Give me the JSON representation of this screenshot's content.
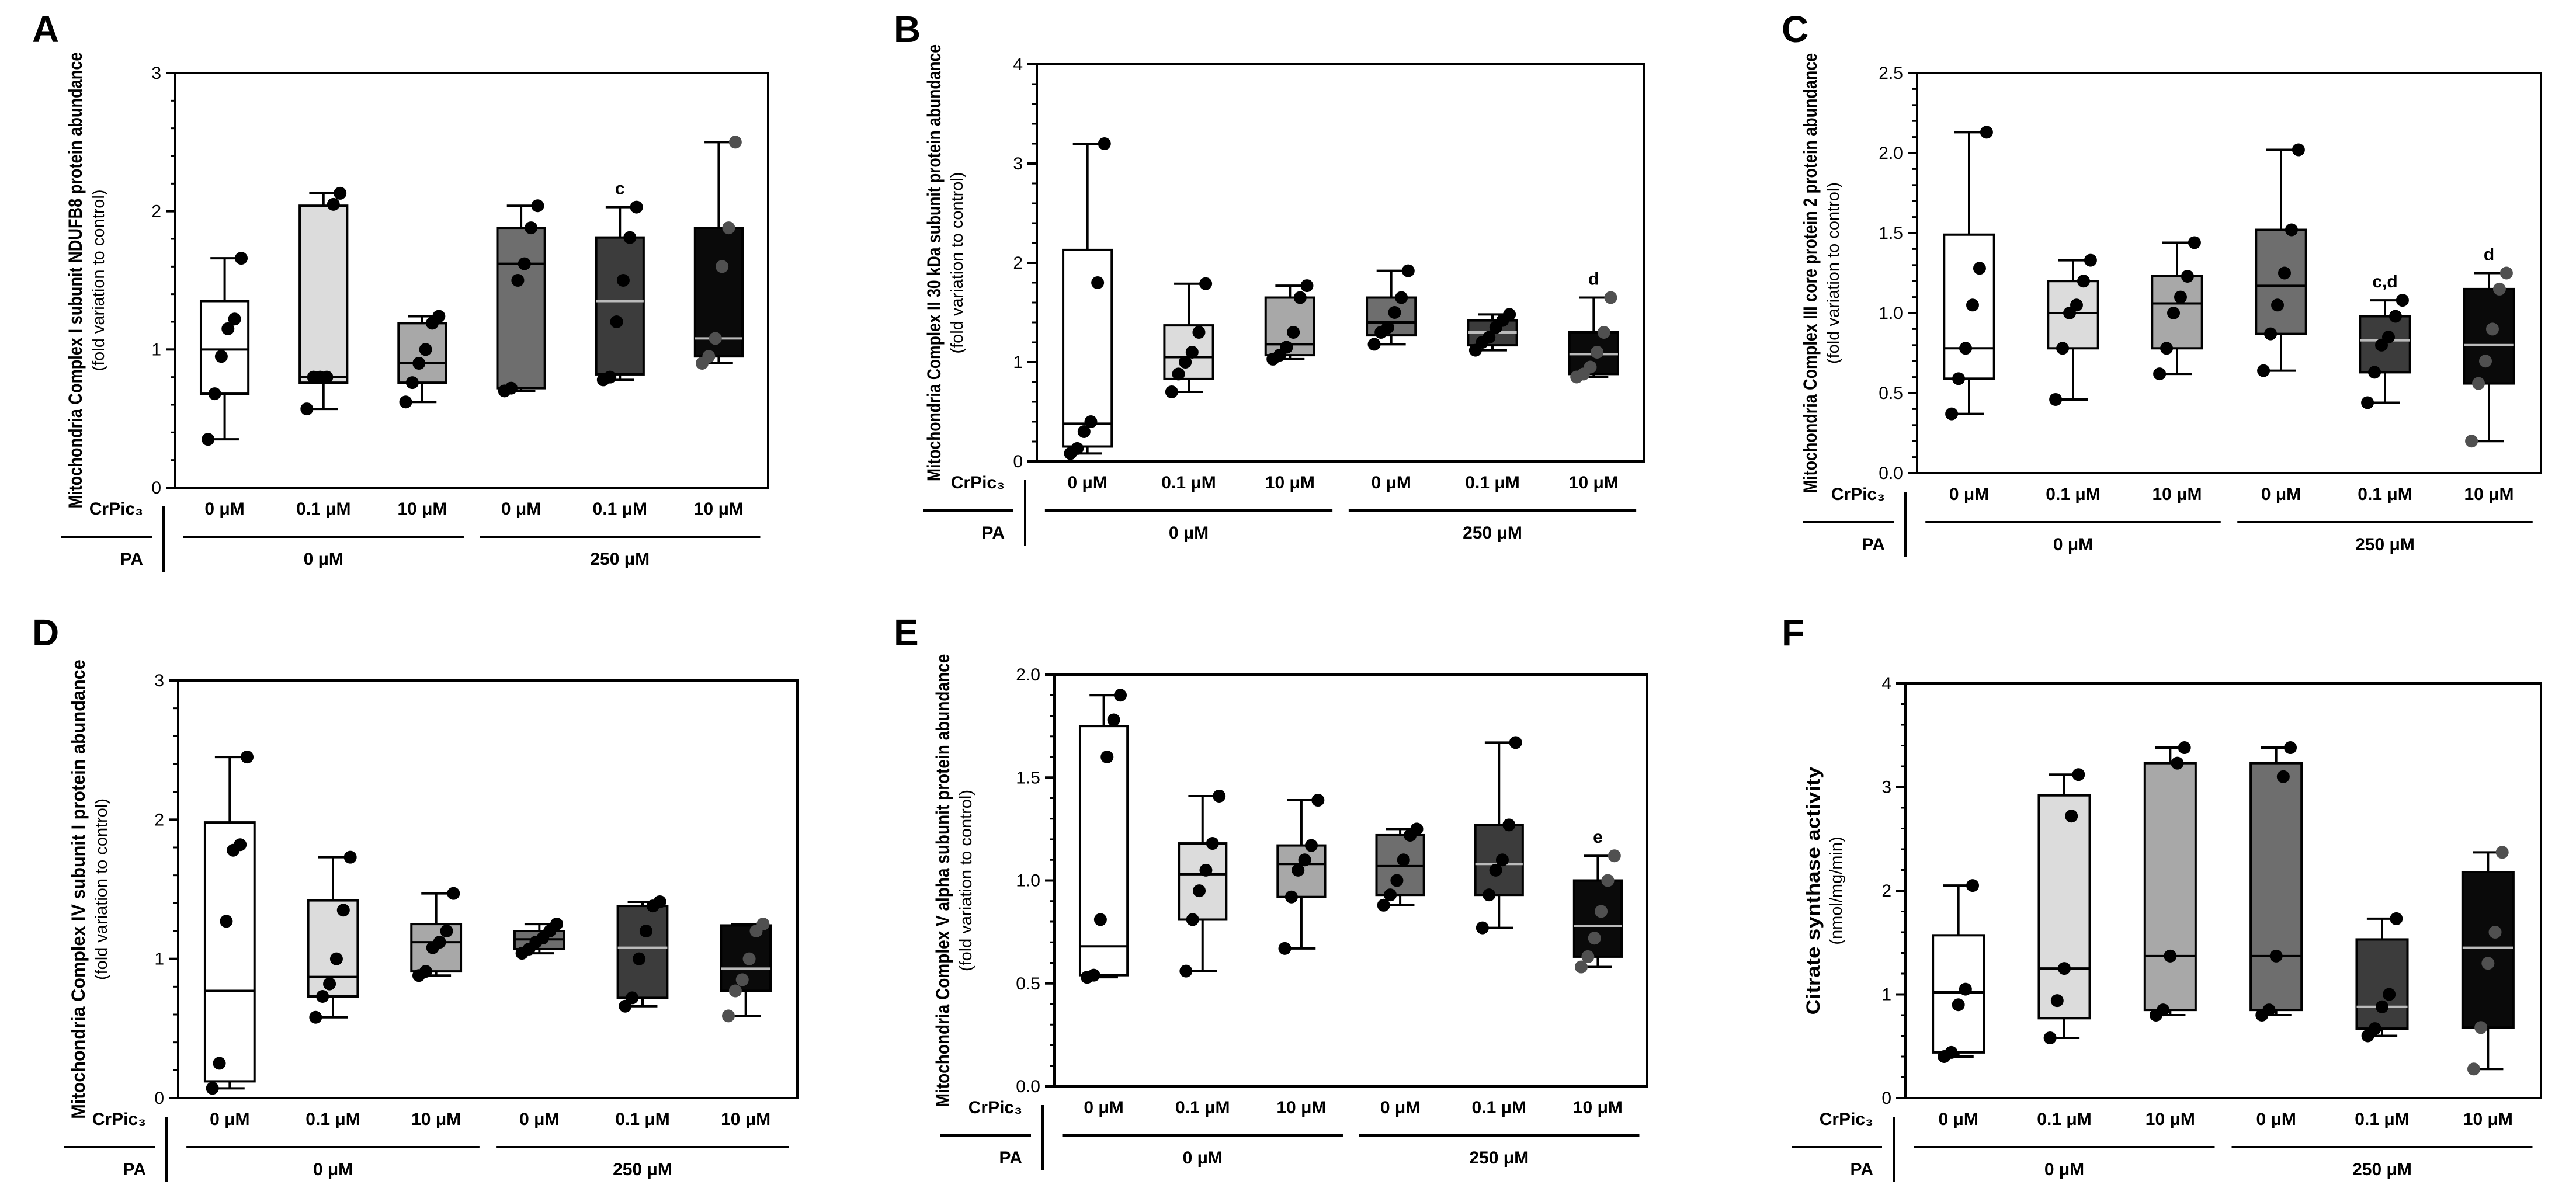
{
  "row_label_top": "CrPic₃",
  "row_label_bottom": "PA",
  "colors": {
    "box_fills": [
      "#ffffff",
      "#dcdcdc",
      "#a8a8a8",
      "#6e6e6e",
      "#3c3c3c",
      "#0a0a0a"
    ],
    "point_colors": [
      "#000000",
      "#000000",
      "#000000",
      "#000000",
      "#000000",
      "#505050"
    ],
    "axis": "#000000"
  },
  "chart_data": [
    {
      "panel": "A",
      "type": "box",
      "ylabel": "Mitochondria Complex I subunit NDUFB8 protein abundance",
      "ylabel_sub": "(fold variation to control)",
      "ylim": [
        0,
        3
      ],
      "yticks": [
        "0",
        "1",
        "2",
        "3"
      ],
      "categories": [
        "0 μM",
        "0.1 μM",
        "10 μM",
        "0 μM",
        "0.1 μM",
        "10 μM"
      ],
      "groups": [
        "0 μM",
        "250 μM"
      ],
      "boxes": [
        {
          "min": 0.35,
          "q1": 0.68,
          "median": 1.0,
          "q3": 1.35,
          "max": 1.66,
          "points": [
            0.35,
            0.68,
            0.95,
            1.15,
            1.22,
            1.66
          ]
        },
        {
          "min": 0.57,
          "q1": 0.76,
          "median": 0.8,
          "q3": 2.04,
          "max": 2.13,
          "points": [
            0.57,
            0.8,
            0.8,
            0.8,
            2.05,
            2.13
          ]
        },
        {
          "min": 0.62,
          "q1": 0.76,
          "median": 0.9,
          "q3": 1.19,
          "max": 1.24,
          "points": [
            0.62,
            0.76,
            0.9,
            1.0,
            1.19,
            1.24
          ]
        },
        {
          "min": 0.7,
          "q1": 0.72,
          "median": 1.62,
          "q3": 1.88,
          "max": 2.04,
          "points": [
            0.7,
            0.72,
            1.5,
            1.62,
            1.88,
            2.04
          ]
        },
        {
          "min": 0.78,
          "q1": 0.82,
          "median": 1.35,
          "q3": 1.81,
          "max": 2.03,
          "points": [
            0.78,
            0.8,
            1.2,
            1.5,
            1.81,
            2.03
          ]
        },
        {
          "min": 0.9,
          "q1": 0.95,
          "median": 1.08,
          "q3": 1.88,
          "max": 2.5,
          "points": [
            0.9,
            0.95,
            1.08,
            1.6,
            1.88,
            2.5
          ]
        }
      ],
      "annotations": [
        {
          "index": 4,
          "text": "c"
        }
      ]
    },
    {
      "panel": "B",
      "type": "box",
      "ylabel": "Mitochondria Complex II 30 kDa subunit protein abundance",
      "ylabel_sub": "(fold variation to control)",
      "ylim": [
        0,
        4
      ],
      "yticks": [
        "0",
        "1",
        "2",
        "3",
        "4"
      ],
      "categories": [
        "0 μM",
        "0.1 μM",
        "10 μM",
        "0 μM",
        "0.1 μM",
        "10 μM"
      ],
      "groups": [
        "0 μM",
        "250 μM"
      ],
      "boxes": [
        {
          "min": 0.08,
          "q1": 0.15,
          "median": 0.38,
          "q3": 2.13,
          "max": 3.2,
          "points": [
            0.08,
            0.13,
            0.3,
            0.4,
            1.8,
            3.2
          ]
        },
        {
          "min": 0.7,
          "q1": 0.83,
          "median": 1.05,
          "q3": 1.37,
          "max": 1.79,
          "points": [
            0.7,
            0.88,
            1.0,
            1.1,
            1.3,
            1.79
          ]
        },
        {
          "min": 1.03,
          "q1": 1.07,
          "median": 1.18,
          "q3": 1.65,
          "max": 1.77,
          "points": [
            1.03,
            1.07,
            1.15,
            1.3,
            1.65,
            1.77
          ]
        },
        {
          "min": 1.18,
          "q1": 1.27,
          "median": 1.4,
          "q3": 1.65,
          "max": 1.92,
          "points": [
            1.18,
            1.3,
            1.35,
            1.5,
            1.65,
            1.92
          ]
        },
        {
          "min": 1.12,
          "q1": 1.17,
          "median": 1.3,
          "q3": 1.42,
          "max": 1.48,
          "points": [
            1.12,
            1.2,
            1.25,
            1.35,
            1.42,
            1.48
          ]
        },
        {
          "min": 0.85,
          "q1": 0.88,
          "median": 1.08,
          "q3": 1.3,
          "max": 1.65,
          "points": [
            0.85,
            0.88,
            0.95,
            1.1,
            1.3,
            1.65
          ]
        }
      ],
      "annotations": [
        {
          "index": 5,
          "text": "d"
        }
      ]
    },
    {
      "panel": "C",
      "type": "box",
      "ylabel": "Mitochondria Complex III core protein 2  protein abundance",
      "ylabel_sub": "(fold variation to control)",
      "ylim": [
        0,
        2.5
      ],
      "yticks": [
        "0.0",
        "0.5",
        "1.0",
        "1.5",
        "2.0",
        "2.5"
      ],
      "categories": [
        "0 μM",
        "0.1 μM",
        "10 μM",
        "0 μM",
        "0.1 μM",
        "10 μM"
      ],
      "groups": [
        "0 μM",
        "250 μM"
      ],
      "boxes": [
        {
          "min": 0.37,
          "q1": 0.59,
          "median": 0.78,
          "q3": 1.49,
          "max": 2.13,
          "points": [
            0.37,
            0.59,
            0.78,
            1.05,
            1.28,
            2.13
          ]
        },
        {
          "min": 0.46,
          "q1": 0.78,
          "median": 1.0,
          "q3": 1.2,
          "max": 1.33,
          "points": [
            0.46,
            0.78,
            1.0,
            1.05,
            1.2,
            1.33
          ]
        },
        {
          "min": 0.62,
          "q1": 0.78,
          "median": 1.06,
          "q3": 1.23,
          "max": 1.44,
          "points": [
            0.62,
            0.78,
            1.0,
            1.1,
            1.23,
            1.44
          ]
        },
        {
          "min": 0.64,
          "q1": 0.87,
          "median": 1.17,
          "q3": 1.52,
          "max": 2.02,
          "points": [
            0.64,
            0.87,
            1.05,
            1.25,
            1.52,
            2.02
          ]
        },
        {
          "min": 0.44,
          "q1": 0.63,
          "median": 0.83,
          "q3": 0.98,
          "max": 1.08,
          "points": [
            0.44,
            0.63,
            0.8,
            0.85,
            0.98,
            1.08
          ]
        },
        {
          "min": 0.2,
          "q1": 0.56,
          "median": 0.8,
          "q3": 1.15,
          "max": 1.25,
          "points": [
            0.2,
            0.56,
            0.7,
            0.9,
            1.15,
            1.25
          ]
        }
      ],
      "annotations": [
        {
          "index": 4,
          "text": "c,d"
        },
        {
          "index": 5,
          "text": "d"
        }
      ]
    },
    {
      "panel": "D",
      "type": "box",
      "ylabel": "Mitochondria Complex IV subunit I protein abundance",
      "ylabel_sub": "(fold variation to control)",
      "ylim": [
        0,
        3
      ],
      "yticks": [
        "0",
        "1",
        "2",
        "3"
      ],
      "categories": [
        "0 μM",
        "0.1 μM",
        "10 μM",
        "0 μM",
        "0.1 μM",
        "10 μM"
      ],
      "groups": [
        "0 μM",
        "250 μM"
      ],
      "boxes": [
        {
          "min": 0.07,
          "q1": 0.12,
          "median": 0.77,
          "q3": 1.98,
          "max": 2.45,
          "points": [
            0.07,
            0.25,
            1.27,
            1.78,
            1.82,
            2.45
          ]
        },
        {
          "min": 0.58,
          "q1": 0.73,
          "median": 0.87,
          "q3": 1.42,
          "max": 1.73,
          "points": [
            0.58,
            0.73,
            0.82,
            1.0,
            1.35,
            1.73
          ]
        },
        {
          "min": 0.88,
          "q1": 0.91,
          "median": 1.12,
          "q3": 1.25,
          "max": 1.47,
          "points": [
            0.88,
            0.91,
            1.08,
            1.12,
            1.2,
            1.47
          ]
        },
        {
          "min": 1.04,
          "q1": 1.07,
          "median": 1.14,
          "q3": 1.2,
          "max": 1.25,
          "points": [
            1.04,
            1.07,
            1.12,
            1.15,
            1.2,
            1.25
          ]
        },
        {
          "min": 0.66,
          "q1": 0.72,
          "median": 1.08,
          "q3": 1.38,
          "max": 1.41,
          "points": [
            0.66,
            0.72,
            1.0,
            1.2,
            1.38,
            1.41
          ]
        },
        {
          "min": 0.59,
          "q1": 0.77,
          "median": 0.93,
          "q3": 1.24,
          "max": 1.25,
          "points": [
            0.59,
            0.77,
            0.85,
            1.0,
            1.2,
            1.25
          ]
        }
      ],
      "annotations": []
    },
    {
      "panel": "E",
      "type": "box",
      "ylabel": "Mitochondria Complex V alpha subunit protein abundance",
      "ylabel_sub": "(fold variation to control)",
      "ylim": [
        0,
        2
      ],
      "yticks": [
        "0.0",
        "0.5",
        "1.0",
        "1.5",
        "2.0"
      ],
      "categories": [
        "0 μM",
        "0.1 μM",
        "10 μM",
        "0 μM",
        "0.1 μM",
        "10 μM"
      ],
      "groups": [
        "0 μM",
        "250 μM"
      ],
      "boxes": [
        {
          "min": 0.53,
          "q1": 0.54,
          "median": 0.68,
          "q3": 1.75,
          "max": 1.9,
          "points": [
            0.53,
            0.54,
            0.81,
            1.6,
            1.78,
            1.9
          ]
        },
        {
          "min": 0.56,
          "q1": 0.81,
          "median": 1.03,
          "q3": 1.18,
          "max": 1.41,
          "points": [
            0.56,
            0.81,
            0.95,
            1.05,
            1.18,
            1.41
          ]
        },
        {
          "min": 0.67,
          "q1": 0.92,
          "median": 1.08,
          "q3": 1.17,
          "max": 1.39,
          "points": [
            0.67,
            0.92,
            1.05,
            1.1,
            1.17,
            1.39
          ]
        },
        {
          "min": 0.88,
          "q1": 0.93,
          "median": 1.07,
          "q3": 1.22,
          "max": 1.25,
          "points": [
            0.88,
            0.93,
            1.0,
            1.1,
            1.22,
            1.25
          ]
        },
        {
          "min": 0.77,
          "q1": 0.93,
          "median": 1.08,
          "q3": 1.27,
          "max": 1.67,
          "points": [
            0.77,
            0.93,
            1.05,
            1.1,
            1.27,
            1.67
          ]
        },
        {
          "min": 0.58,
          "q1": 0.63,
          "median": 0.78,
          "q3": 1.0,
          "max": 1.12,
          "points": [
            0.58,
            0.63,
            0.72,
            0.85,
            1.0,
            1.12
          ]
        }
      ],
      "annotations": [
        {
          "index": 5,
          "text": "e"
        }
      ]
    },
    {
      "panel": "F",
      "type": "box",
      "ylabel": "Citrate synthase activity",
      "ylabel_sub": "(nmol/mg/min)",
      "ylim": [
        0,
        4
      ],
      "yticks": [
        "0",
        "1",
        "2",
        "3",
        "4"
      ],
      "categories": [
        "0 μM",
        "0.1 μM",
        "10 μM",
        "0 μM",
        "0.1 μM",
        "10 μM"
      ],
      "groups": [
        "0 μM",
        "250 μM"
      ],
      "boxes": [
        {
          "min": 0.4,
          "q1": 0.44,
          "median": 1.02,
          "q3": 1.57,
          "max": 2.05,
          "points": [
            0.4,
            0.44,
            0.9,
            1.05,
            2.05
          ]
        },
        {
          "min": 0.58,
          "q1": 0.77,
          "median": 1.25,
          "q3": 2.92,
          "max": 3.12,
          "points": [
            0.58,
            0.94,
            1.25,
            2.72,
            3.12
          ]
        },
        {
          "min": 0.8,
          "q1": 0.85,
          "median": 1.37,
          "q3": 3.23,
          "max": 3.38,
          "points": [
            0.8,
            0.85,
            1.37,
            3.23,
            3.38
          ]
        },
        {
          "min": 0.8,
          "q1": 0.85,
          "median": 1.37,
          "q3": 3.23,
          "max": 3.38,
          "points": [
            0.8,
            0.85,
            1.37,
            3.1,
            3.38
          ]
        },
        {
          "min": 0.6,
          "q1": 0.67,
          "median": 0.88,
          "q3": 1.53,
          "max": 1.73,
          "points": [
            0.6,
            0.67,
            0.88,
            1.0,
            1.73
          ]
        },
        {
          "min": 0.28,
          "q1": 0.68,
          "median": 1.45,
          "q3": 2.18,
          "max": 2.37,
          "points": [
            0.28,
            0.68,
            1.3,
            1.6,
            2.37
          ]
        }
      ],
      "annotations": []
    }
  ]
}
